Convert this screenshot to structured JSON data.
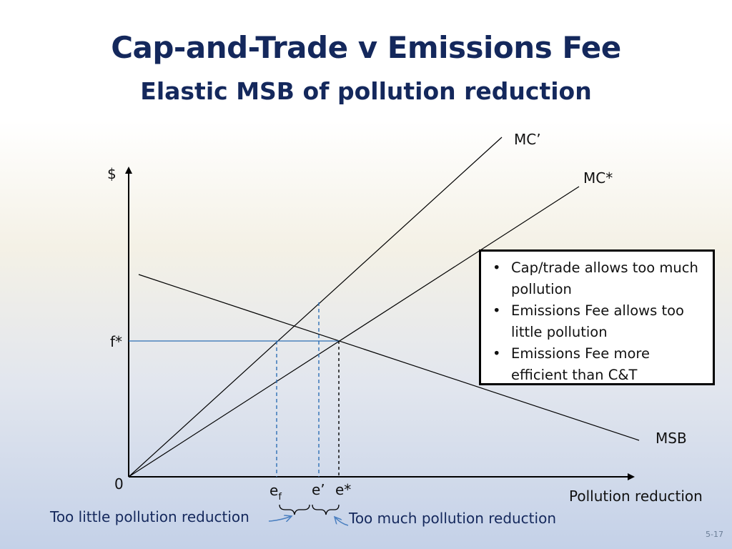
{
  "slide": {
    "title": "Cap-and-Trade v Emissions Fee",
    "subtitle": "Elastic MSB of pollution reduction",
    "page_number": "5-17"
  },
  "diagram": {
    "y_axis_label": "$",
    "x_axis_label": "Pollution reduction",
    "origin_label": "0",
    "curves": {
      "mc_prime": "MC’",
      "mc_star": "MC*",
      "msb": "MSB"
    },
    "price_label": "f*",
    "x_marks": {
      "ef_main": "e",
      "ef_sub": "f",
      "e_prime": "e’",
      "e_star": "e*"
    },
    "annotations": {
      "too_little": "Too little pollution reduction",
      "too_much": "Too much pollution reduction"
    },
    "colors": {
      "title": "#14285c",
      "guide_blue": "#2e6fb5",
      "guide_black": "#000000",
      "arrow_blue": "#4a7fc0"
    }
  },
  "info_box": {
    "bullets": [
      "Cap/trade allows too much pollution",
      "Emissions Fee allows too little pollution",
      "Emissions Fee more efficient than C&T"
    ]
  }
}
